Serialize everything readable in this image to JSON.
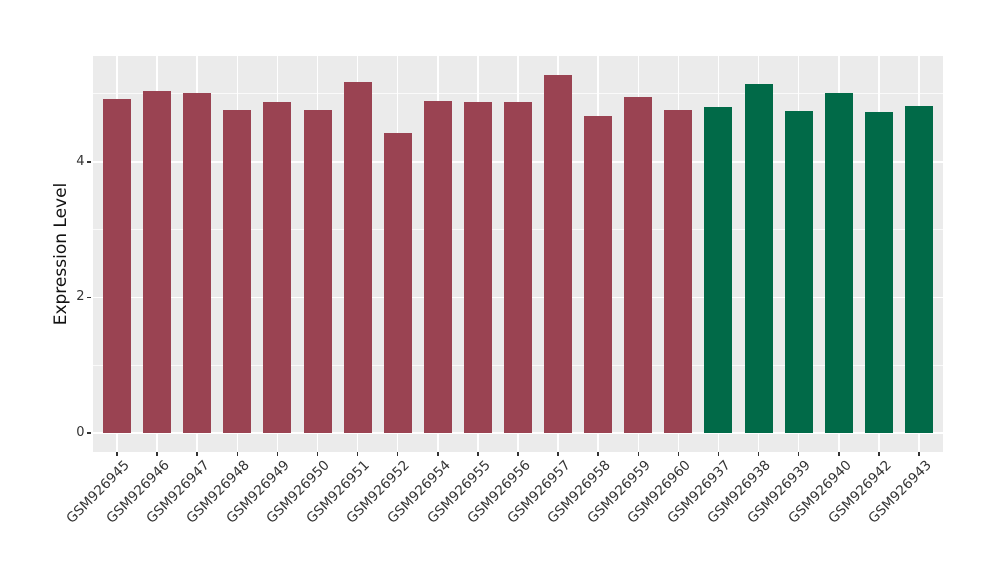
{
  "chart_data": {
    "type": "bar",
    "title": "",
    "ylabel": "Expression Level",
    "xlabel": "",
    "ylim": [
      -0.28,
      5.56
    ],
    "yticks_major": [
      0,
      2,
      4
    ],
    "yticks_minor": [
      1,
      3,
      5
    ],
    "legend": "none",
    "grid": {
      "horizontal_major": true,
      "horizontal_minor": true,
      "vertical_major_per_category": true
    },
    "colors": {
      "figure_background": "#FFFFFF",
      "panel_background": "#EBEBEB",
      "gridline": "#FFFFFF",
      "tick_mark": "#333333",
      "tick_label_text": "#333333",
      "axis_title_text": "#111111",
      "group_red": "#9A4352",
      "group_green": "#016A48"
    },
    "bars": [
      {
        "label": "GSM926945",
        "value": 4.92,
        "group": "red"
      },
      {
        "label": "GSM926946",
        "value": 5.04,
        "group": "red"
      },
      {
        "label": "GSM926947",
        "value": 5.02,
        "group": "red"
      },
      {
        "label": "GSM926948",
        "value": 4.76,
        "group": "red"
      },
      {
        "label": "GSM926949",
        "value": 4.88,
        "group": "red"
      },
      {
        "label": "GSM926950",
        "value": 4.76,
        "group": "red"
      },
      {
        "label": "GSM926951",
        "value": 5.17,
        "group": "red"
      },
      {
        "label": "GSM926952",
        "value": 4.43,
        "group": "red"
      },
      {
        "label": "GSM926954",
        "value": 4.9,
        "group": "red"
      },
      {
        "label": "GSM926955",
        "value": 4.88,
        "group": "red"
      },
      {
        "label": "GSM926956",
        "value": 4.88,
        "group": "red"
      },
      {
        "label": "GSM926957",
        "value": 5.28,
        "group": "red"
      },
      {
        "label": "GSM926958",
        "value": 4.67,
        "group": "red"
      },
      {
        "label": "GSM926959",
        "value": 4.95,
        "group": "red"
      },
      {
        "label": "GSM926960",
        "value": 4.77,
        "group": "red"
      },
      {
        "label": "GSM926937",
        "value": 4.81,
        "group": "green"
      },
      {
        "label": "GSM926938",
        "value": 5.15,
        "group": "green"
      },
      {
        "label": "GSM926939",
        "value": 4.75,
        "group": "green"
      },
      {
        "label": "GSM926940",
        "value": 5.02,
        "group": "green"
      },
      {
        "label": "GSM926942",
        "value": 4.73,
        "group": "green"
      },
      {
        "label": "GSM926943",
        "value": 4.82,
        "group": "green"
      }
    ]
  }
}
